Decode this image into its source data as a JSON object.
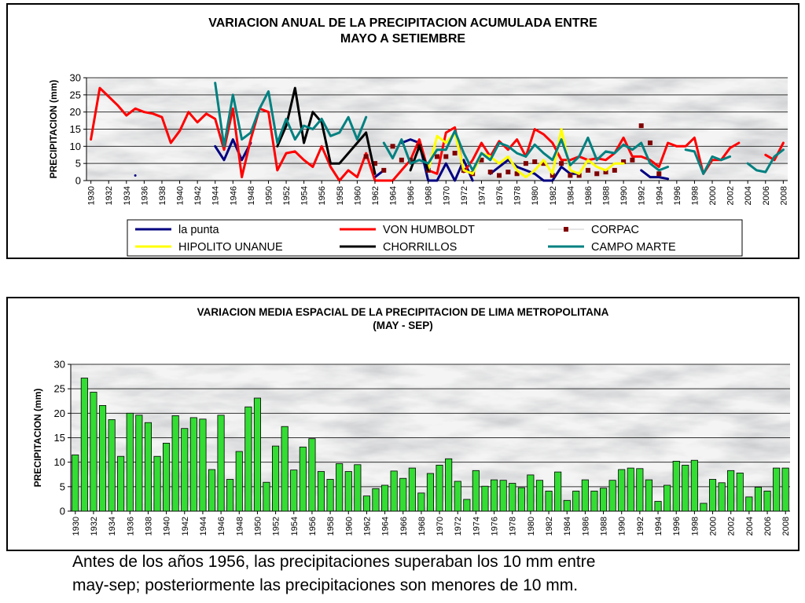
{
  "chart_data": [
    {
      "type": "line",
      "title": "VARIACION ANUAL DE LA PRECIPITACION ACUMULADA ENTRE",
      "title2": "MAYO A SETIEMBRE",
      "ylabel": "PRECIPITACION (mm)",
      "xlabel": "",
      "ylim": [
        0,
        30
      ],
      "yticks": [
        0,
        5,
        10,
        15,
        20,
        25,
        30
      ],
      "xlim": [
        1930,
        2008
      ],
      "xticks": [
        1930,
        1932,
        1934,
        1936,
        1938,
        1940,
        1942,
        1944,
        1946,
        1948,
        1950,
        1952,
        1954,
        1956,
        1958,
        1960,
        1962,
        1964,
        1966,
        1968,
        1970,
        1972,
        1974,
        1976,
        1978,
        1980,
        1982,
        1984,
        1986,
        1988,
        1990,
        1992,
        1994,
        1996,
        1998,
        2000,
        2002,
        2004,
        2006,
        2008
      ],
      "grid": true,
      "legend_position": "bottom",
      "series": [
        {
          "name": "la punta",
          "color": "#000080",
          "style": "line",
          "x": [
            1935,
            1944,
            1945,
            1946,
            1947,
            1948,
            1962,
            1963,
            1965,
            1966,
            1967,
            1968,
            1969,
            1970,
            1971,
            1972,
            1973,
            1975,
            1976,
            1977,
            1978,
            1979,
            1980,
            1981,
            1982,
            1983,
            1984,
            1985,
            1992,
            1993,
            1994,
            1995
          ],
          "y": [
            1.5,
            10,
            6,
            12,
            6,
            11,
            1,
            3,
            11,
            12,
            11,
            0,
            0,
            5,
            0,
            6,
            0,
            2,
            4,
            6,
            4,
            3,
            2,
            0,
            0,
            4,
            2,
            2,
            3,
            1,
            1,
            0.5
          ]
        },
        {
          "name": "VON HUMBOLDT",
          "color": "#ff0000",
          "style": "line",
          "x": [
            1930,
            1931,
            1932,
            1933,
            1934,
            1935,
            1936,
            1937,
            1938,
            1939,
            1940,
            1941,
            1942,
            1943,
            1944,
            1945,
            1946,
            1947,
            1948,
            1949,
            1950,
            1951,
            1952,
            1953,
            1954,
            1955,
            1956,
            1957,
            1958,
            1959,
            1960,
            1961,
            1962,
            1963,
            1964,
            1965,
            1966,
            1967,
            1968,
            1969,
            1970,
            1971,
            1972,
            1973,
            1974,
            1975,
            1976,
            1977,
            1978,
            1979,
            1980,
            1981,
            1982,
            1983,
            1984,
            1985,
            1986,
            1987,
            1988,
            1989,
            1990,
            1991,
            1992,
            1993,
            1994,
            1995,
            1996,
            1997,
            1998,
            1999,
            2000,
            2001,
            2002,
            2003,
            2004,
            2005,
            2006,
            2007,
            2008
          ],
          "y": [
            12,
            27,
            24.5,
            22,
            19,
            21,
            20,
            19.5,
            18.5,
            11,
            14.5,
            20,
            17,
            19.5,
            18,
            9,
            21,
            1,
            12,
            21,
            20,
            3,
            8,
            8.5,
            6,
            4,
            10,
            4,
            0,
            3,
            1,
            8,
            0,
            0,
            0,
            3,
            6,
            12,
            3,
            2,
            14,
            15.5,
            2.5,
            6,
            11,
            7,
            11.5,
            9,
            12,
            7,
            15,
            13.5,
            11,
            6,
            6,
            7,
            6,
            6.5,
            6,
            8,
            12.5,
            7,
            7,
            6,
            4,
            11,
            10,
            10,
            12.5,
            2,
            6,
            6,
            9.5,
            11,
            null,
            null,
            7.5,
            6,
            11
          ]
        },
        {
          "name": "CORPAC",
          "color": "#800000",
          "style": "marker",
          "x": [
            1961,
            1962,
            1963,
            1964,
            1965,
            1966,
            1967,
            1968,
            1969,
            1970,
            1971,
            1972,
            1973,
            1974,
            1975,
            1976,
            1977,
            1978,
            1979,
            1980,
            1981,
            1982,
            1983,
            1984,
            1985,
            1986,
            1987,
            1988,
            1989,
            1990,
            1991,
            1992,
            1993,
            1994
          ],
          "y": [
            7,
            5,
            3,
            10,
            6,
            6,
            10,
            3,
            7,
            7,
            8,
            3,
            2,
            6,
            2.5,
            1.5,
            2.5,
            2,
            5,
            5.5,
            5,
            1.5,
            5,
            1.5,
            1.5,
            3,
            2,
            2.5,
            3,
            5.5,
            6,
            16,
            11,
            2
          ]
        },
        {
          "name": "HIPOLITO UNANUE",
          "color": "#ffff00",
          "style": "line",
          "x": [
            1968,
            1969,
            1970,
            1971,
            1972,
            1973,
            1974,
            1975,
            1976,
            1977,
            1978,
            1979,
            1980,
            1981,
            1982,
            1983,
            1984,
            1985,
            1986,
            1987,
            1988,
            1989,
            1990
          ],
          "y": [
            3,
            13,
            11,
            14,
            3,
            2,
            8,
            7,
            5,
            7,
            3,
            1,
            3,
            6,
            2,
            15,
            3,
            2,
            6,
            4,
            3,
            5,
            5
          ]
        },
        {
          "name": "CHORRILLOS",
          "color": "#000000",
          "style": "line",
          "x": [
            1951,
            1952,
            1953,
            1954,
            1955,
            1956,
            1957,
            1958,
            1959,
            1960,
            1961,
            1962,
            1963,
            1964,
            1965,
            1966,
            1967,
            1968
          ],
          "y": [
            10,
            16,
            27,
            11,
            20,
            17,
            5,
            5,
            8,
            11,
            14,
            2,
            null,
            null,
            null,
            3,
            10,
            3
          ]
        },
        {
          "name": "CAMPO MARTE",
          "color": "#008080",
          "style": "line",
          "x": [
            1944,
            1945,
            1946,
            1947,
            1948,
            1949,
            1950,
            1951,
            1952,
            1953,
            1954,
            1955,
            1956,
            1957,
            1958,
            1959,
            1960,
            1961,
            1962,
            1963,
            1964,
            1965,
            1966,
            1967,
            1968,
            1969,
            1970,
            1971,
            1972,
            1973,
            1974,
            1975,
            1976,
            1977,
            1978,
            1979,
            1980,
            1981,
            1982,
            1983,
            1984,
            1985,
            1986,
            1987,
            1988,
            1989,
            1990,
            1991,
            1992,
            1993,
            1994,
            1995,
            1996,
            1997,
            1998,
            1999,
            2000,
            2001,
            2002,
            2003,
            2004,
            2005,
            2006,
            2007,
            2008
          ],
          "y": [
            28.5,
            10,
            25,
            12,
            14,
            21,
            26,
            11,
            18,
            12,
            16,
            15,
            18,
            13,
            14,
            18.5,
            12,
            18.5,
            null,
            11,
            6.5,
            12,
            5,
            6,
            5,
            9,
            9,
            14.5,
            8,
            3,
            8,
            6,
            11,
            10,
            8,
            7,
            10.5,
            8,
            6,
            12,
            4.5,
            7,
            12.5,
            6,
            8.5,
            8,
            10.5,
            9,
            11,
            5,
            3,
            4,
            null,
            9,
            8.5,
            2,
            7,
            6,
            7,
            null,
            5,
            3,
            2.5,
            7,
            9
          ]
        }
      ]
    },
    {
      "type": "bar",
      "title": "VARIACION MEDIA ESPACIAL DE LA PRECIPITACION DE LIMA METROPOLITANA",
      "title2": "(MAY - SEP)",
      "ylabel": "PRECIPITACION (mm)",
      "xlabel": "",
      "ylim": [
        0,
        30
      ],
      "yticks": [
        0,
        5,
        10,
        15,
        20,
        25,
        30
      ],
      "grid": true,
      "color": "#33dd33",
      "categories": [
        1930,
        1931,
        1932,
        1933,
        1934,
        1935,
        1936,
        1937,
        1938,
        1939,
        1940,
        1941,
        1942,
        1943,
        1944,
        1945,
        1946,
        1947,
        1948,
        1949,
        1950,
        1951,
        1952,
        1953,
        1954,
        1955,
        1956,
        1957,
        1958,
        1959,
        1960,
        1961,
        1962,
        1963,
        1964,
        1965,
        1966,
        1967,
        1968,
        1969,
        1970,
        1971,
        1972,
        1973,
        1974,
        1975,
        1976,
        1977,
        1978,
        1979,
        1980,
        1981,
        1982,
        1983,
        1984,
        1985,
        1986,
        1987,
        1988,
        1989,
        1990,
        1991,
        1992,
        1993,
        1994,
        1995,
        1996,
        1997,
        1998,
        1999,
        2000,
        2001,
        2002,
        2003,
        2004,
        2005,
        2006,
        2007,
        2008
      ],
      "values": [
        11.5,
        27.2,
        24.3,
        21.6,
        18.7,
        11.2,
        20,
        19.6,
        18.1,
        11.2,
        13.9,
        19.5,
        16.9,
        19.1,
        18.8,
        8.5,
        19.6,
        6.5,
        12.2,
        21.3,
        23.1,
        5.9,
        13.3,
        17.3,
        8.4,
        13.1,
        14.8,
        8.1,
        6.5,
        9.7,
        8.1,
        9.5,
        3.1,
        4.6,
        5.3,
        8.2,
        6.7,
        8.8,
        3.7,
        7.7,
        9.4,
        10.7,
        6.1,
        2.4,
        8.3,
        5.1,
        6.4,
        6.3,
        5.7,
        4.8,
        7.4,
        6.3,
        4.1,
        8,
        2.2,
        4.1,
        6.4,
        4.1,
        4.7,
        6.3,
        8.5,
        8.8,
        8.7,
        6.4,
        2,
        5.3,
        10.2,
        9.4,
        10.4,
        1.6,
        6.5,
        5.8,
        8.3,
        7.8,
        2.9,
        4.9,
        4.1,
        8.8,
        8.8
      ],
      "xticks": [
        1930,
        1932,
        1934,
        1936,
        1938,
        1940,
        1942,
        1944,
        1946,
        1948,
        1950,
        1952,
        1954,
        1956,
        1958,
        1960,
        1962,
        1964,
        1966,
        1968,
        1970,
        1972,
        1974,
        1976,
        1978,
        1980,
        1982,
        1984,
        1986,
        1988,
        1990,
        1992,
        1994,
        1996,
        1998,
        2000,
        2002,
        2004,
        2006,
        2008
      ]
    }
  ],
  "caption_lines": [
    "Antes de los años 1956, las precipitaciones superaban los 10 mm entre",
    "may-sep; posteriormente las precipitaciones son menores de 10 mm."
  ]
}
